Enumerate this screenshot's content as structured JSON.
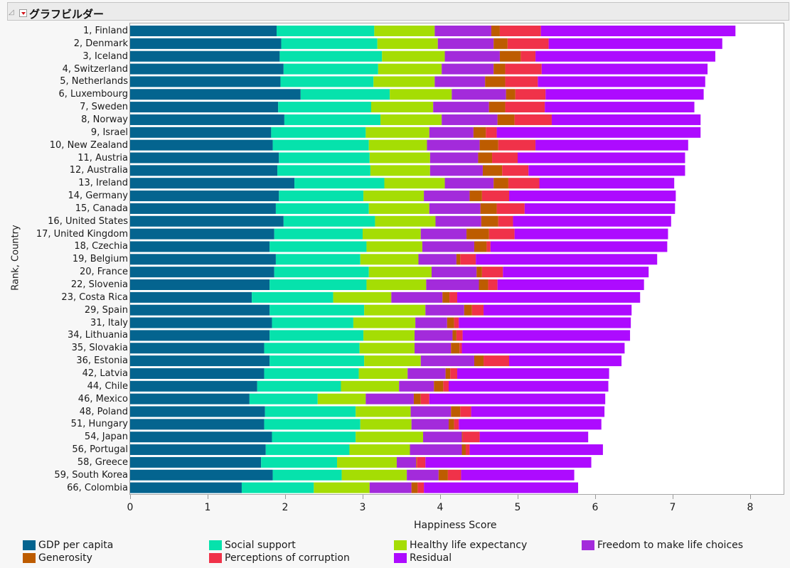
{
  "window": {
    "title": "グラフビルダー"
  },
  "chart_data": {
    "type": "bar",
    "orientation": "horizontal",
    "stacked": true,
    "title": "",
    "xlabel": "Happiness Score",
    "ylabel": "Rank, Country",
    "xlim": [
      0,
      8.4
    ],
    "xticks": [
      "0",
      "1",
      "2",
      "3",
      "4",
      "5",
      "6",
      "7",
      "8"
    ],
    "grid": false,
    "legend_position": "bottom",
    "categories": [
      "1, Finland",
      "2, Denmark",
      "3, Iceland",
      "4, Switzerland",
      "5, Netherlands",
      "6, Luxembourg",
      "7, Sweden",
      "8, Norway",
      "9, Israel",
      "10, New Zealand",
      "11, Austria",
      "12, Australia",
      "13, Ireland",
      "14, Germany",
      "15, Canada",
      "16, United States",
      "17, United Kingdom",
      "18, Czechia",
      "19, Belgium",
      "20, France",
      "22, Slovenia",
      "23, Costa Rica",
      "29, Spain",
      "31, Italy",
      "34, Lithuania",
      "35, Slovakia",
      "36, Estonia",
      "42, Latvia",
      "44, Chile",
      "46, Mexico",
      "48, Poland",
      "51, Hungary",
      "54, Japan",
      "56, Portugal",
      "58, Greece",
      "59, South Korea",
      "66, Colombia"
    ],
    "series": [
      {
        "name": "GDP per capita",
        "color": "#04648f",
        "values": [
          1.89,
          1.95,
          1.93,
          1.98,
          1.94,
          2.2,
          1.91,
          1.99,
          1.82,
          1.84,
          1.92,
          1.9,
          2.12,
          1.92,
          1.88,
          1.98,
          1.86,
          1.8,
          1.88,
          1.86,
          1.8,
          1.57,
          1.8,
          1.83,
          1.8,
          1.73,
          1.8,
          1.73,
          1.64,
          1.54,
          1.74,
          1.73,
          1.83,
          1.75,
          1.69,
          1.84,
          1.44
        ]
      },
      {
        "name": "Social support",
        "color": "#06e2ac",
        "values": [
          1.26,
          1.24,
          1.32,
          1.22,
          1.2,
          1.15,
          1.2,
          1.24,
          1.22,
          1.24,
          1.17,
          1.2,
          1.16,
          1.09,
          1.2,
          1.18,
          1.14,
          1.25,
          1.09,
          1.22,
          1.25,
          1.05,
          1.22,
          1.05,
          1.21,
          1.23,
          1.22,
          1.22,
          1.08,
          0.88,
          1.17,
          1.24,
          1.08,
          1.08,
          0.98,
          0.89,
          0.93
        ]
      },
      {
        "name": "Healthy life expectancy",
        "color": "#a5dd04",
        "values": [
          0.78,
          0.78,
          0.81,
          0.82,
          0.79,
          0.8,
          0.8,
          0.79,
          0.82,
          0.75,
          0.78,
          0.77,
          0.78,
          0.78,
          0.78,
          0.78,
          0.75,
          0.72,
          0.75,
          0.81,
          0.77,
          0.75,
          0.79,
          0.8,
          0.66,
          0.71,
          0.73,
          0.63,
          0.75,
          0.62,
          0.71,
          0.66,
          0.87,
          0.78,
          0.77,
          0.84,
          0.72
        ]
      },
      {
        "name": "Freedom to make life choices",
        "color": "#a32bdb",
        "values": [
          0.73,
          0.72,
          0.71,
          0.67,
          0.65,
          0.7,
          0.72,
          0.72,
          0.57,
          0.68,
          0.62,
          0.68,
          0.63,
          0.59,
          0.66,
          0.59,
          0.59,
          0.67,
          0.49,
          0.58,
          0.68,
          0.66,
          0.5,
          0.41,
          0.49,
          0.47,
          0.69,
          0.49,
          0.45,
          0.62,
          0.52,
          0.48,
          0.5,
          0.67,
          0.25,
          0.41,
          0.54
        ]
      },
      {
        "name": "Generosity",
        "color": "#bd5c00",
        "values": [
          0.11,
          0.18,
          0.27,
          0.15,
          0.26,
          0.12,
          0.21,
          0.22,
          0.16,
          0.24,
          0.18,
          0.25,
          0.19,
          0.16,
          0.21,
          0.22,
          0.29,
          0.16,
          0.05,
          0.07,
          0.12,
          0.09,
          0.1,
          0.09,
          0.05,
          0.11,
          0.12,
          0.06,
          0.12,
          0.09,
          0.12,
          0.07,
          0.01,
          0.05,
          0.01,
          0.12,
          0.08
        ]
      },
      {
        "name": "Perceptions of corruption",
        "color": "#f03249",
        "values": [
          0.53,
          0.53,
          0.19,
          0.47,
          0.42,
          0.39,
          0.51,
          0.48,
          0.14,
          0.48,
          0.33,
          0.34,
          0.4,
          0.35,
          0.36,
          0.19,
          0.33,
          0.05,
          0.2,
          0.27,
          0.12,
          0.1,
          0.15,
          0.06,
          0.08,
          0.03,
          0.33,
          0.09,
          0.07,
          0.11,
          0.14,
          0.06,
          0.22,
          0.05,
          0.11,
          0.17,
          0.08
        ]
      },
      {
        "name": "Residual",
        "color": "#ad0bff",
        "values": [
          2.51,
          2.24,
          2.32,
          2.14,
          2.16,
          2.04,
          1.93,
          1.92,
          2.63,
          1.97,
          2.16,
          2.02,
          1.74,
          2.15,
          1.94,
          2.04,
          1.98,
          2.28,
          2.34,
          1.88,
          1.89,
          2.36,
          1.91,
          2.22,
          2.16,
          2.1,
          1.45,
          1.96,
          2.06,
          2.27,
          1.72,
          1.84,
          1.4,
          1.72,
          2.14,
          1.46,
          1.99
        ]
      }
    ]
  },
  "legend": [
    {
      "label": "GDP per capita",
      "color": "#04648f"
    },
    {
      "label": "Social support",
      "color": "#06e2ac"
    },
    {
      "label": "Healthy life expectancy",
      "color": "#a5dd04"
    },
    {
      "label": "Freedom to make life choices",
      "color": "#a32bdb"
    },
    {
      "label": "Generosity",
      "color": "#bd5c00"
    },
    {
      "label": "Perceptions of corruption",
      "color": "#f03249"
    },
    {
      "label": "Residual",
      "color": "#ad0bff"
    }
  ]
}
